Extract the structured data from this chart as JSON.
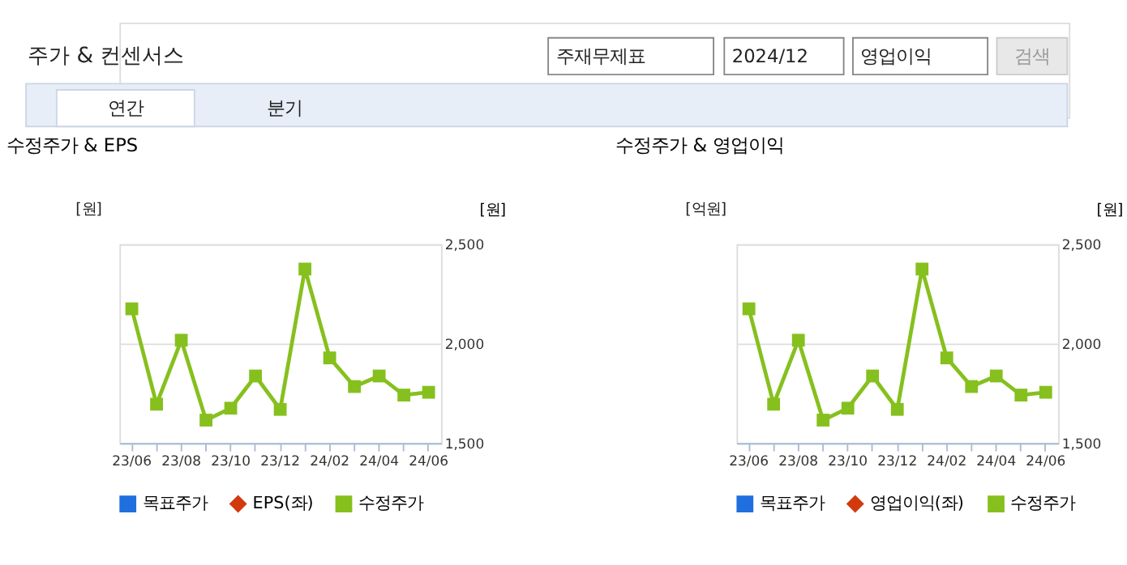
{
  "chart_data": [
    {
      "type": "other",
      "title": "주가 & 컨센서스",
      "annotations": [
        "주재무제표",
        "2024/12",
        "영업이익",
        "검색",
        "연간",
        "분기"
      ]
    },
    {
      "type": "line",
      "title": "수정주가 & EPS",
      "ylabel": "[원]",
      "y2label": "[원]",
      "categories": [
        "23/06",
        null,
        "23/08",
        null,
        "23/10",
        null,
        "23/12",
        null,
        "24/02",
        null,
        "24/04",
        null,
        "24/06"
      ],
      "series": [
        {
          "name": "목표주가",
          "type": "bar",
          "color": "#1f6fde",
          "marker": "square",
          "values": [
            null,
            null,
            null,
            null,
            null,
            null,
            null,
            null,
            null,
            null,
            null,
            null,
            null
          ]
        },
        {
          "name": "EPS(좌)",
          "type": "line",
          "color": "#d23a0e",
          "marker": "diamond",
          "values": [
            null,
            null,
            null,
            null,
            null,
            null,
            null,
            null,
            null,
            null,
            null,
            null,
            null
          ]
        },
        {
          "name": "수정주가",
          "type": "line",
          "axis": "y2",
          "color": "#86c01e",
          "marker": "square",
          "values": [
            2175,
            1695,
            2017,
            1615,
            1675,
            1837,
            1669,
            2375,
            1928,
            1784,
            1837,
            1741,
            1755
          ]
        }
      ],
      "y2lim": [
        1500,
        2500
      ],
      "y2ticks": [
        {
          "value": 1500,
          "label": "1,500"
        },
        {
          "value": 2000,
          "label": "2,000"
        },
        {
          "value": 2500,
          "label": "2,500"
        }
      ],
      "grid": true,
      "legend": "bottom"
    },
    {
      "type": "line",
      "title": "수정주가 & 영업이익",
      "ylabel": "[억원]",
      "y2label": "[원]",
      "categories": [
        "23/06",
        null,
        "23/08",
        null,
        "23/10",
        null,
        "23/12",
        null,
        "24/02",
        null,
        "24/04",
        null,
        "24/06"
      ],
      "series": [
        {
          "name": "목표주가",
          "type": "bar",
          "color": "#1f6fde",
          "marker": "square",
          "values": [
            null,
            null,
            null,
            null,
            null,
            null,
            null,
            null,
            null,
            null,
            null,
            null,
            null
          ]
        },
        {
          "name": "영업이익(좌)",
          "type": "line",
          "color": "#d23a0e",
          "marker": "diamond",
          "values": [
            null,
            null,
            null,
            null,
            null,
            null,
            null,
            null,
            null,
            null,
            null,
            null,
            null
          ]
        },
        {
          "name": "수정주가",
          "type": "line",
          "axis": "y2",
          "color": "#86c01e",
          "marker": "square",
          "values": [
            2175,
            1695,
            2017,
            1615,
            1675,
            1837,
            1669,
            2375,
            1928,
            1784,
            1837,
            1741,
            1755
          ]
        }
      ],
      "y2lim": [
        1500,
        2500
      ],
      "y2ticks": [
        {
          "value": 1500,
          "label": "1,500"
        },
        {
          "value": 2000,
          "label": "2,000"
        },
        {
          "value": 2500,
          "label": "2,500"
        }
      ],
      "grid": true,
      "legend": "bottom"
    }
  ]
}
